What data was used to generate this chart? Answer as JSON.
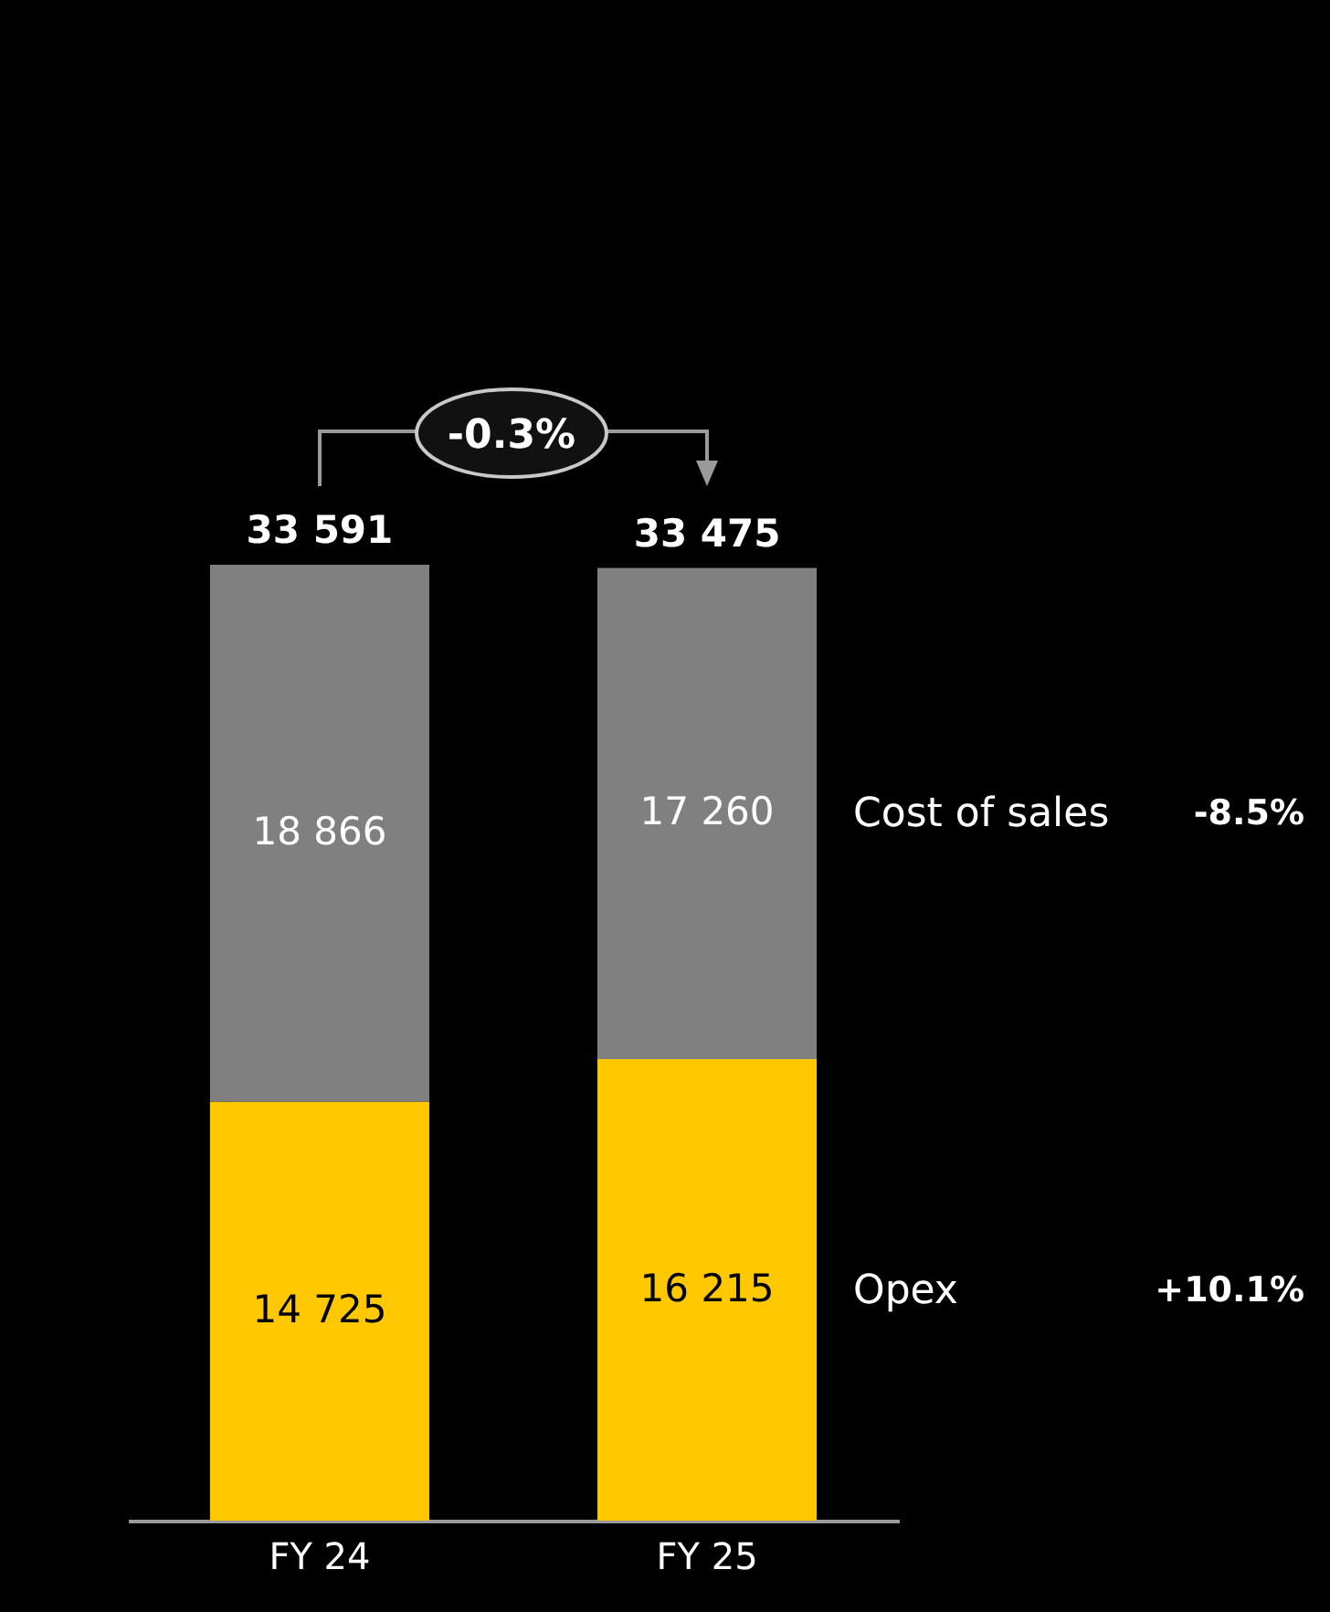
{
  "chart_data": {
    "type": "bar",
    "stacked": true,
    "categories": [
      "FY 24",
      "FY 25"
    ],
    "series": [
      {
        "name": "Opex",
        "color": "#ffc800",
        "values": [
          14725,
          16215
        ],
        "value_labels": [
          "14 725",
          "16 215"
        ]
      },
      {
        "name": "Cost of sales",
        "color": "#808080",
        "values": [
          18866,
          17260
        ],
        "value_labels": [
          "18 866",
          "17 260"
        ]
      }
    ],
    "totals": [
      "33 591",
      "33 475"
    ],
    "annotations": [
      "-0.3%",
      "+10.1%",
      "-8.5%"
    ]
  }
}
